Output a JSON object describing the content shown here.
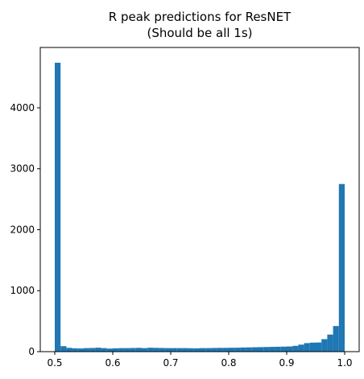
{
  "chart_data": {
    "type": "bar",
    "title": [
      "R peak predictions for ResNET",
      "(Should be all 1s)"
    ],
    "xlabel": "",
    "ylabel": "",
    "xlim": [
      0.475,
      1.025
    ],
    "ylim": [
      0,
      4990
    ],
    "xticks": [
      0.5,
      0.6,
      0.7,
      0.8,
      0.9,
      1.0
    ],
    "xtick_labels": [
      "0.5",
      "0.6",
      "0.7",
      "0.8",
      "0.9",
      "1.0"
    ],
    "yticks": [
      0,
      1000,
      2000,
      3000,
      4000
    ],
    "ytick_labels": [
      "0",
      "1000",
      "2000",
      "3000",
      "4000"
    ],
    "bar_color": "#1f77b4",
    "bin_range": [
      0.5,
      1.0
    ],
    "bins": 50,
    "values": [
      4740,
      90,
      62,
      55,
      52,
      58,
      60,
      65,
      58,
      50,
      55,
      58,
      58,
      60,
      62,
      58,
      65,
      62,
      60,
      58,
      58,
      58,
      58,
      56,
      55,
      58,
      58,
      60,
      62,
      62,
      64,
      65,
      68,
      70,
      72,
      74,
      76,
      78,
      80,
      82,
      85,
      95,
      115,
      140,
      148,
      150,
      205,
      280,
      420,
      2750
    ]
  }
}
